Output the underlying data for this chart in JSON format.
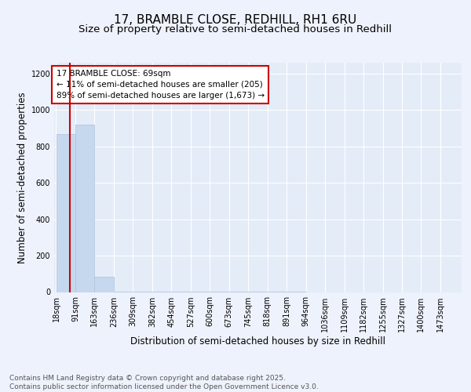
{
  "title": "17, BRAMBLE CLOSE, REDHILL, RH1 6RU",
  "subtitle": "Size of property relative to semi-detached houses in Redhill",
  "xlabel": "Distribution of semi-detached houses by size in Redhill",
  "ylabel": "Number of semi-detached properties",
  "bar_color": "#c5d8ee",
  "bar_edge_color": "#aac2de",
  "property_line_color": "#cc0000",
  "annotation_box_color": "#cc0000",
  "annotation_line1": "17 BRAMBLE CLOSE: 69sqm",
  "annotation_line2": "← 11% of semi-detached houses are smaller (205)",
  "annotation_line3": "89% of semi-detached houses are larger (1,673) →",
  "property_size_sqm": 69,
  "bins": [
    18,
    91,
    163,
    236,
    309,
    382,
    454,
    527,
    600,
    673,
    745,
    818,
    891,
    964,
    1036,
    1109,
    1182,
    1255,
    1327,
    1400,
    1473
  ],
  "bar_heights": [
    870,
    920,
    83,
    3,
    2,
    1,
    1,
    1,
    1,
    1,
    1,
    1,
    1,
    0,
    0,
    0,
    0,
    0,
    0,
    0
  ],
  "ylim": [
    0,
    1260
  ],
  "yticks": [
    0,
    200,
    400,
    600,
    800,
    1000,
    1200
  ],
  "background_color": "#eef2fc",
  "plot_bg_color": "#e4ecf8",
  "grid_color": "#ffffff",
  "footer_text": "Contains HM Land Registry data © Crown copyright and database right 2025.\nContains public sector information licensed under the Open Government Licence v3.0.",
  "title_fontsize": 11,
  "subtitle_fontsize": 9.5,
  "axis_label_fontsize": 8.5,
  "tick_fontsize": 7,
  "annotation_fontsize": 7.5,
  "footer_fontsize": 6.5
}
